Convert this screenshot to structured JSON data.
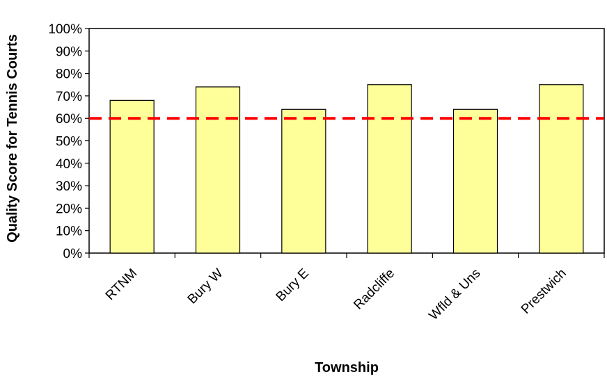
{
  "chart_data": {
    "type": "bar",
    "categories": [
      "RTNM",
      "Bury W",
      "Bury E",
      "Radcliffe",
      "Wfld & Uns",
      "Prestwich"
    ],
    "values": [
      68,
      74,
      64,
      75,
      64,
      75
    ],
    "ylabel": "Quality Score for Tennis Courts",
    "xlabel": "Township",
    "ylim": [
      0,
      100
    ],
    "y_ticks": [
      "0%",
      "10%",
      "20%",
      "30%",
      "40%",
      "50%",
      "60%",
      "70%",
      "80%",
      "90%",
      "100%"
    ],
    "reference_line": {
      "value": 60,
      "style": "dashed"
    },
    "grid": false,
    "legend": "none",
    "colors": {
      "bar_fill": "#ffff99",
      "bar_stroke": "#000000",
      "reference_line": "#ff0000"
    }
  }
}
